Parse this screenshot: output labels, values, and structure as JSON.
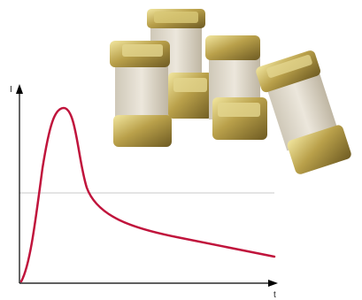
{
  "axes": {
    "y_label": "I",
    "x_label": "t"
  }
}
